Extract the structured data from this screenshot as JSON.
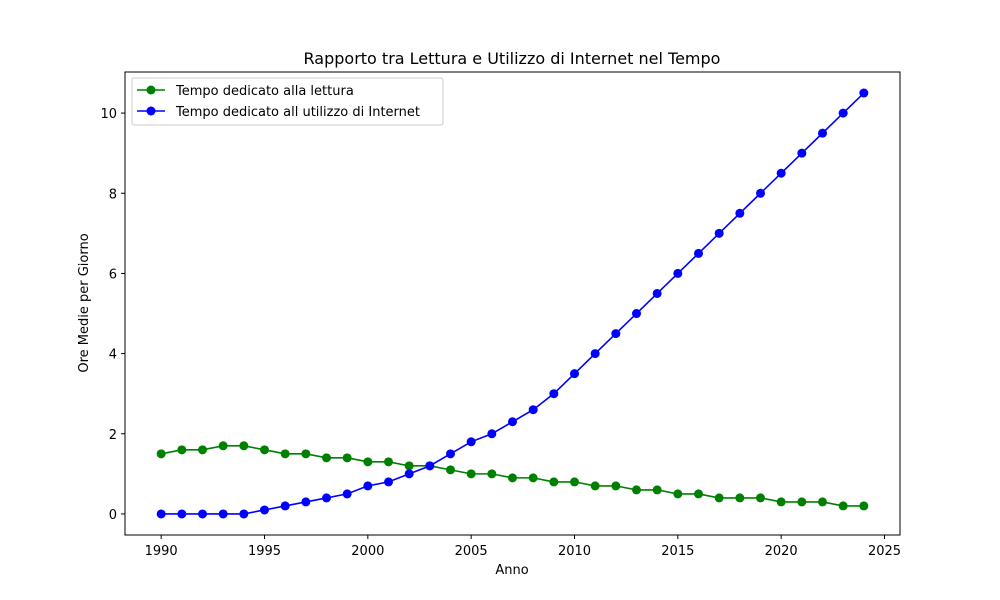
{
  "chart_data": {
    "type": "line",
    "title": "Rapporto tra Lettura e Utilizzo di Internet nel Tempo",
    "xlabel": "Anno",
    "ylabel": "Ore Medie per Giorno",
    "xlim": [
      1988.25,
      2025.75
    ],
    "ylim": [
      -0.525,
      11.025
    ],
    "xticks": [
      1990,
      1995,
      2000,
      2005,
      2010,
      2015,
      2020,
      2025
    ],
    "yticks": [
      0,
      2,
      4,
      6,
      8,
      10
    ],
    "grid": false,
    "legend_position": "top-left",
    "x": [
      1990,
      1991,
      1992,
      1993,
      1994,
      1995,
      1996,
      1997,
      1998,
      1999,
      2000,
      2001,
      2002,
      2003,
      2004,
      2005,
      2006,
      2007,
      2008,
      2009,
      2010,
      2011,
      2012,
      2013,
      2014,
      2015,
      2016,
      2017,
      2018,
      2019,
      2020,
      2021,
      2022,
      2023,
      2024
    ],
    "series": [
      {
        "name": "Tempo dedicato alla lettura",
        "color": "#008000",
        "values": [
          1.5,
          1.6,
          1.6,
          1.7,
          1.7,
          1.6,
          1.5,
          1.5,
          1.4,
          1.4,
          1.3,
          1.3,
          1.2,
          1.2,
          1.1,
          1.0,
          1.0,
          0.9,
          0.9,
          0.8,
          0.8,
          0.7,
          0.7,
          0.6,
          0.6,
          0.5,
          0.5,
          0.4,
          0.4,
          0.4,
          0.3,
          0.3,
          0.3,
          0.2,
          0.2
        ]
      },
      {
        "name": "Tempo dedicato all utilizzo di Internet",
        "color": "#0000ff",
        "values": [
          0.0,
          0.0,
          0.0,
          0.0,
          0.0,
          0.1,
          0.2,
          0.3,
          0.4,
          0.5,
          0.7,
          0.8,
          1.0,
          1.2,
          1.5,
          1.8,
          2.0,
          2.3,
          2.6,
          3.0,
          3.5,
          4.0,
          4.5,
          5.0,
          5.5,
          6.0,
          6.5,
          7.0,
          7.5,
          8.0,
          8.5,
          9.0,
          9.5,
          10.0,
          10.5
        ]
      }
    ]
  }
}
